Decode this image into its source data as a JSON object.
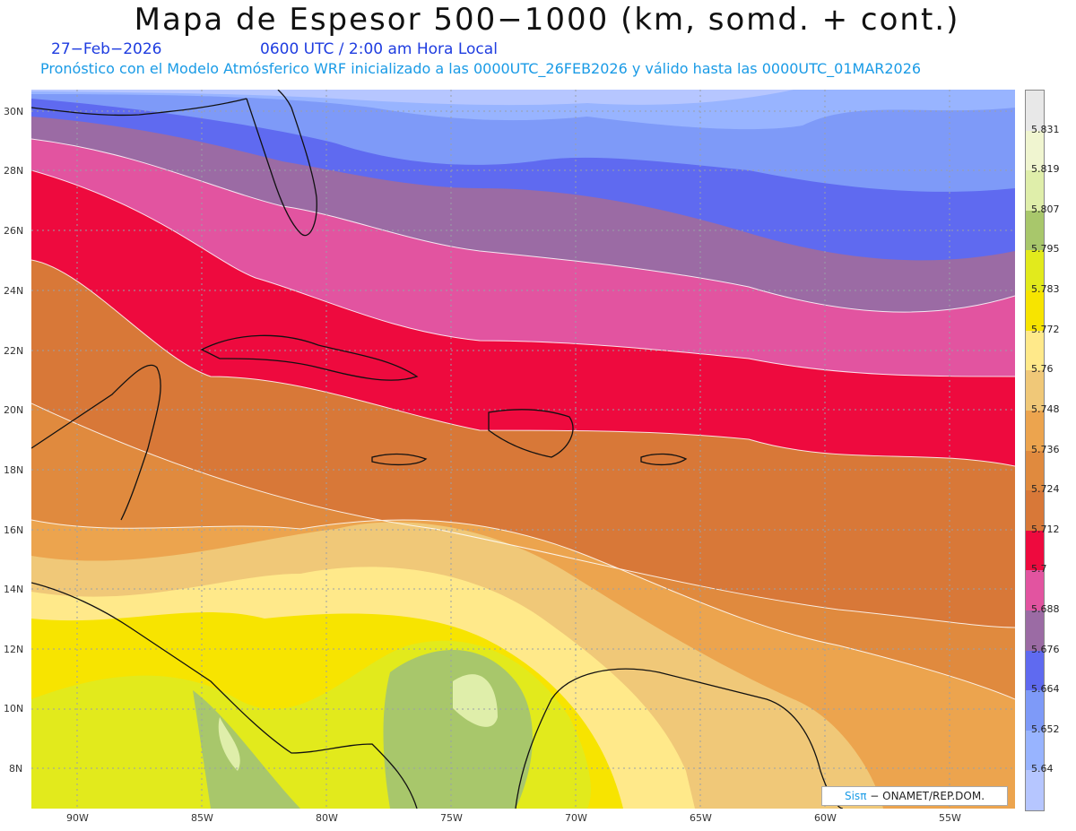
{
  "title": "Mapa de Espesor 500−1000 (km, somd. + cont.)",
  "date": "27−Feb−2026",
  "time": "0600 UTC / 2:00 am Hora Local",
  "model_line": "Pronóstico con el Modelo Atmósferico WRF inicializado a las 0000UTC_26FEB2026 y válido hasta las  0000UTC_01MAR2026",
  "lat_ticks": [
    "30N",
    "28N",
    "26N",
    "24N",
    "22N",
    "20N",
    "18N",
    "16N",
    "14N",
    "12N",
    "10N",
    "8N"
  ],
  "lon_ticks": [
    "90W",
    "85W",
    "80W",
    "75W",
    "70W",
    "65W",
    "60W",
    "55W"
  ],
  "colorbar": {
    "labels": [
      "5.831",
      "5.819",
      "5.807",
      "5.795",
      "5.783",
      "5.772",
      "5.76",
      "5.748",
      "5.736",
      "5.724",
      "5.712",
      "5.7",
      "5.688",
      "5.676",
      "5.664",
      "5.652",
      "5.64"
    ],
    "colors": [
      "#e8e8e8",
      "#f0f5d0",
      "#dfeeaa",
      "#a8c76b",
      "#e2ea1c",
      "#f7e400",
      "#ffe98a",
      "#f0c878",
      "#eca44e",
      "#e08a3e",
      "#d87838",
      "#ee0a3e",
      "#e254a0",
      "#9b6ba4",
      "#5f6af0",
      "#7e9af8",
      "#98b4ff",
      "#b6c6ff"
    ]
  },
  "credit": {
    "sis": "Sisπ",
    "text": "− ONAMET/REP.DOM."
  }
}
